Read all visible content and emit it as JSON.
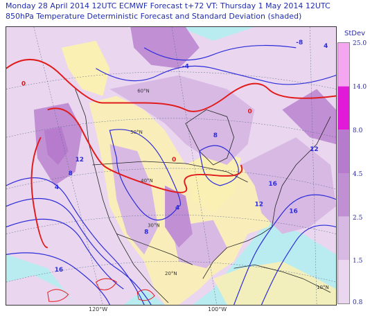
{
  "title_line1": "Monday 28 April 2014 12UTC ECMWF Forecast t+72  VT: Thursday 1 May 2014 12UTC",
  "title_line2": "850hPa Temperature Deterministic Forecast and Standard Deviation (shaded)",
  "legend": {
    "title": "StDev",
    "levels": [
      {
        "label": "25.0",
        "color": "#f4a6f1"
      },
      {
        "label": "14.0",
        "color": "#e11ad7"
      },
      {
        "label": "8.0",
        "color": "#b67bcc"
      },
      {
        "label": "4.5",
        "color": "#c190d4"
      },
      {
        "label": "2.5",
        "color": "#d8b9e4"
      },
      {
        "label": "1.5",
        "color": "#ead7ef"
      },
      {
        "label": "0.8",
        "color": "#ead7ef"
      }
    ]
  },
  "map": {
    "ocean_color": "#b9ecf1",
    "land_color": "#fbf0b4",
    "lat_labels": [
      "60°N",
      "50°N",
      "40°N",
      "30°N",
      "20°N",
      "10°N"
    ],
    "lon_labels": [
      "120°W",
      "100°W"
    ],
    "contour_labels": [
      "0",
      "4",
      "8",
      "12",
      "16",
      "0",
      "-4",
      "-8",
      "4",
      "4",
      "8",
      "12",
      "16",
      "16",
      "12",
      "8",
      "0"
    ]
  },
  "colors": {
    "zero_contour": "#e11b1b",
    "temp_contour": "#2b2bd9",
    "title": "#1f2bb0"
  }
}
